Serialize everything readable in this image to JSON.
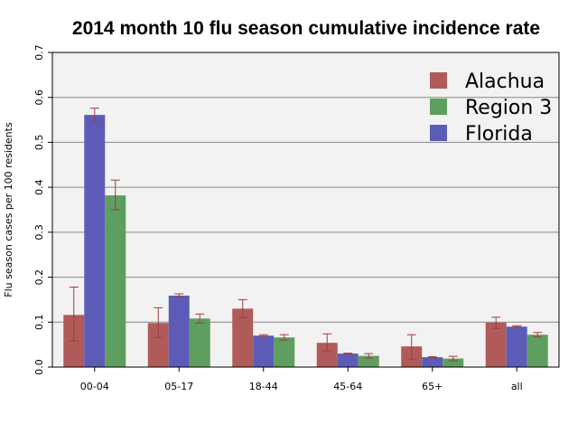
{
  "chart_data": {
    "type": "bar",
    "title": "2014 month 10 flu season cumulative incidence rate",
    "xlabel": "",
    "ylabel": "Flu season cases per 100 residents",
    "ylim": [
      0,
      0.7
    ],
    "yticks": [
      "0.0",
      "0.1",
      "0.2",
      "0.3",
      "0.4",
      "0.5",
      "0.6",
      "0.7"
    ],
    "grid": true,
    "legend_position": "top-right",
    "categories": [
      "00-04",
      "05-17",
      "18-44",
      "45-64",
      "65+",
      "all"
    ],
    "series": [
      {
        "name": "Alachua",
        "color": "#b05a5a",
        "values": [
          0.116,
          0.098,
          0.13,
          0.054,
          0.046,
          0.099
        ],
        "err_low": [
          0.058,
          0.066,
          0.11,
          0.036,
          0.018,
          0.086
        ],
        "err_high": [
          0.178,
          0.132,
          0.15,
          0.074,
          0.072,
          0.111
        ]
      },
      {
        "name": "Florida",
        "color": "#5c5cb8",
        "values": [
          0.561,
          0.159,
          0.07,
          0.03,
          0.022,
          0.09
        ],
        "err_low": [
          0.546,
          0.155,
          0.068,
          0.029,
          0.021,
          0.089
        ],
        "err_high": [
          0.576,
          0.163,
          0.072,
          0.031,
          0.023,
          0.092
        ]
      },
      {
        "name": "Region 3",
        "color": "#5e9e5e",
        "values": [
          0.382,
          0.108,
          0.066,
          0.025,
          0.019,
          0.072
        ],
        "err_low": [
          0.35,
          0.098,
          0.06,
          0.02,
          0.014,
          0.067
        ],
        "err_high": [
          0.416,
          0.118,
          0.072,
          0.03,
          0.024,
          0.077
        ]
      }
    ],
    "legend_order": [
      "Alachua",
      "Region 3",
      "Florida"
    ],
    "error_bar_color": "#a03c3c",
    "plot_background": "#f2f2f2"
  }
}
